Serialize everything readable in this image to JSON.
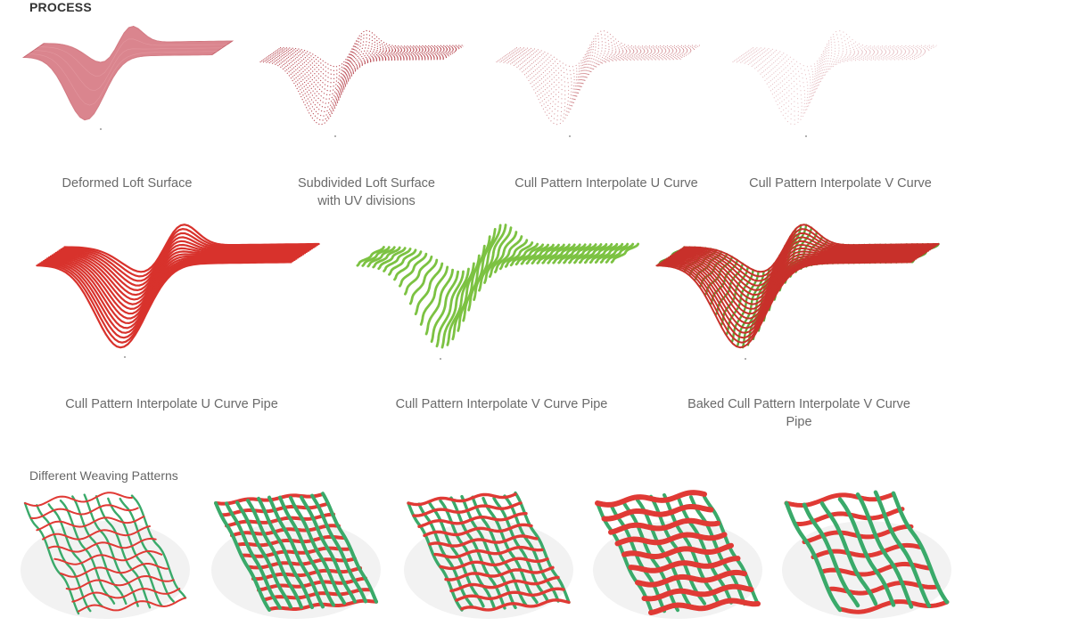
{
  "title": "PROCESS",
  "steps": [
    {
      "caption": "Deformed Loft Surface"
    },
    {
      "caption": "Subdivided Loft Surface with UV divisions"
    },
    {
      "caption": "Cull Pattern Interpolate U Curve"
    },
    {
      "caption": "Cull Pattern Interpolate V Curve"
    },
    {
      "caption": "Cull Pattern Interpolate U Curve Pipe"
    },
    {
      "caption": "Cull Pattern Interpolate V Curve Pipe"
    },
    {
      "caption": "Baked Cull Pattern Interpolate V Curve Pipe"
    }
  ],
  "weaving": {
    "title": "Different Weaving Patterns",
    "patterns": [
      "pattern-1",
      "pattern-2",
      "pattern-3",
      "pattern-4",
      "pattern-5"
    ]
  },
  "colors": {
    "surface": "#d4707a",
    "dotted": "#b23a44",
    "u_pipe": "#d8322c",
    "v_pipe": "#7cc242",
    "weave_red": "#e03a35",
    "weave_green": "#3aaa6a"
  }
}
